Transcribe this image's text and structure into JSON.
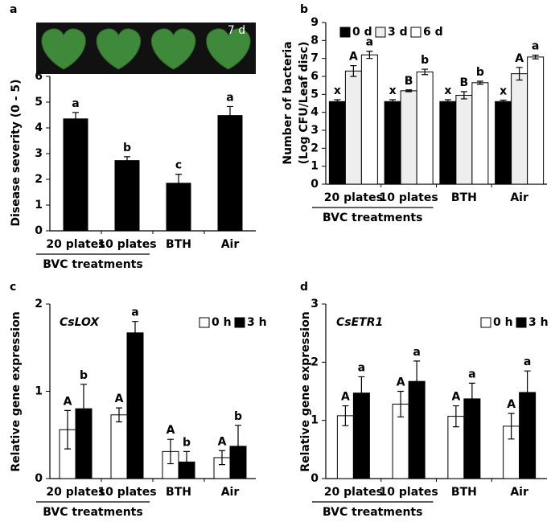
{
  "chart_data": [
    {
      "type": "bar",
      "title": "a",
      "photo_label": "7 d",
      "ylabel": "Disease severity (0 - 5)",
      "categories": [
        "20 plates",
        "10 plates",
        "BTH",
        "Air"
      ],
      "group_label": "BVC treatments",
      "ylim": [
        0,
        6
      ],
      "yticks": [
        0,
        1,
        2,
        3,
        4,
        5,
        6
      ],
      "series": [
        {
          "color": "#000000",
          "values": [
            4.35,
            2.73,
            1.85,
            4.48
          ],
          "errors": [
            0.25,
            0.15,
            0.35,
            0.35
          ],
          "letters": [
            "a",
            "b",
            "c",
            "a"
          ]
        }
      ]
    },
    {
      "type": "bar",
      "title": "b",
      "ylabel": [
        "Number of bacteria",
        "(Log CFU/Leaf disc)"
      ],
      "categories": [
        "20 plates",
        "10 plates",
        "BTH",
        "Air"
      ],
      "group_label": "BVC treatments",
      "ylim": [
        0,
        9
      ],
      "yticks": [
        0,
        1,
        2,
        3,
        4,
        5,
        6,
        7,
        8,
        9
      ],
      "legend": "top-left",
      "series": [
        {
          "name": "0 d",
          "color": "#000000",
          "values": [
            4.6,
            4.6,
            4.6,
            4.6
          ],
          "errors": [
            0.1,
            0.1,
            0.1,
            0.08
          ],
          "letters": [
            "x",
            "x",
            "x",
            "x"
          ]
        },
        {
          "name": "3 d",
          "color": "#eeeeee",
          "values": [
            6.3,
            5.2,
            4.95,
            6.15
          ],
          "errors": [
            0.3,
            0.05,
            0.2,
            0.35
          ],
          "letters": [
            "A",
            "B",
            "B",
            "A"
          ]
        },
        {
          "name": "6 d",
          "color": "#ffffff",
          "values": [
            7.2,
            6.25,
            5.65,
            7.08
          ],
          "errors": [
            0.2,
            0.15,
            0.08,
            0.1
          ],
          "letters": [
            "a",
            "b",
            "b",
            "a"
          ]
        }
      ]
    },
    {
      "type": "bar",
      "title": "c",
      "gene": "CsLOX",
      "ylabel": "Relative gene expression",
      "categories": [
        "20 plates",
        "10 plates",
        "BTH",
        "Air"
      ],
      "group_label": "BVC treatments",
      "ylim": [
        0,
        2
      ],
      "yticks": [
        0,
        1,
        2
      ],
      "legend": "top-right",
      "series": [
        {
          "name": "0 h",
          "color": "#ffffff",
          "values": [
            0.56,
            0.73,
            0.31,
            0.24
          ],
          "errors": [
            0.22,
            0.08,
            0.14,
            0.08
          ],
          "letters": [
            "A",
            "A",
            "A",
            "A"
          ]
        },
        {
          "name": "3 h",
          "color": "#000000",
          "values": [
            0.8,
            1.67,
            0.19,
            0.37
          ],
          "errors": [
            0.28,
            0.13,
            0.12,
            0.24
          ],
          "letters": [
            "b",
            "a",
            "b",
            "b"
          ]
        }
      ]
    },
    {
      "type": "bar",
      "title": "d",
      "gene": "CsETR1",
      "ylabel": "Relative gene expression",
      "categories": [
        "20 plates",
        "10 plates",
        "BTH",
        "Air"
      ],
      "group_label": "BVC treatments",
      "ylim": [
        0,
        3
      ],
      "yticks": [
        0,
        1,
        2,
        3
      ],
      "legend": "top-right",
      "series": [
        {
          "name": "0 h",
          "color": "#ffffff",
          "values": [
            1.08,
            1.28,
            1.07,
            0.9
          ],
          "errors": [
            0.17,
            0.22,
            0.18,
            0.22
          ],
          "letters": [
            "A",
            "A",
            "A",
            "A"
          ]
        },
        {
          "name": "3 h",
          "color": "#000000",
          "values": [
            1.47,
            1.67,
            1.37,
            1.48
          ],
          "errors": [
            0.28,
            0.35,
            0.27,
            0.37
          ],
          "letters": [
            "a",
            "a",
            "a",
            "a"
          ]
        }
      ]
    }
  ]
}
